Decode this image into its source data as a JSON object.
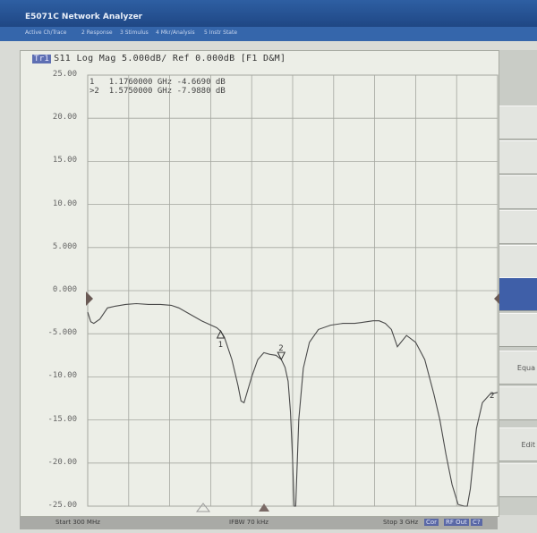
{
  "window": {
    "title": "E5071C Network Analyzer"
  },
  "menu": [
    "Active Ch/Trace",
    "2 Response",
    "3 Stimulus",
    "4 Mkr/Analysis",
    "5 Instr State"
  ],
  "trace": {
    "badge": "Tr1",
    "header": "S11 Log Mag 5.000dB/ Ref 0.000dB [F1 D&M]"
  },
  "markers": [
    {
      "label": "1",
      "freq": "1.1760000 GHz",
      "value": "-4.6690 dB"
    },
    {
      "label": ">2",
      "freq": "1.5750000 GHz",
      "value": "-7.9880 dB"
    }
  ],
  "marker_tags": [
    "1",
    "2",
    "2"
  ],
  "y_labels": [
    "25.00",
    "20.00",
    "15.00",
    "10.00",
    "5.000",
    "0.000",
    "-5.000",
    "-10.00",
    "-15.00",
    "-20.00",
    "-25.00"
  ],
  "status": {
    "start": "Start 300 MHz",
    "ifbw": "IFBW 70 kHz",
    "stop": "Stop 3 GHz",
    "tags": [
      "Cor",
      "RF Out",
      "C?"
    ]
  },
  "softkeys": [
    "",
    "",
    "",
    "",
    "",
    "",
    "",
    "",
    "",
    "Equa",
    "",
    "Edit",
    ""
  ],
  "colors": {
    "trace": "#4a4a4a",
    "grid": "#a4a69f",
    "titlebar": "#2e5fa3",
    "active_key": "#3f5fa8"
  },
  "chart_data": {
    "type": "line",
    "title": "S11 Log Mag 5.000dB/ Ref 0.000dB [F1 D&M]",
    "xlabel": "",
    "ylabel": "",
    "xlim": [
      0.3,
      3.0
    ],
    "ylim": [
      -25,
      25
    ],
    "x_units": "GHz",
    "y_units": "dB",
    "yticks": [
      25,
      20,
      15,
      10,
      5,
      0,
      -5,
      -10,
      -15,
      -20,
      -25
    ],
    "grid": true,
    "series": [
      {
        "x": [
          0.3,
          0.32,
          0.34,
          0.38,
          0.43,
          0.48,
          0.55,
          0.62,
          0.7,
          0.78,
          0.85,
          0.9,
          0.95,
          1.0,
          1.05,
          1.1,
          1.15,
          1.176,
          1.2,
          1.25,
          1.29,
          1.31,
          1.33,
          1.38,
          1.42,
          1.46,
          1.5,
          1.54,
          1.575,
          1.6,
          1.62,
          1.635,
          1.648,
          1.66,
          1.67,
          1.69,
          1.72,
          1.76,
          1.82,
          1.9,
          1.98,
          2.06,
          2.1,
          2.14,
          2.18,
          2.22,
          2.26,
          2.3,
          2.34,
          2.4,
          2.46,
          2.52,
          2.58,
          2.62,
          2.66,
          2.7,
          2.74,
          2.78,
          2.8,
          2.82,
          2.86,
          2.9,
          2.95,
          3.0
        ],
        "y": [
          -2.5,
          -3.6,
          -3.8,
          -3.3,
          -2.0,
          -1.8,
          -1.6,
          -1.5,
          -1.6,
          -1.6,
          -1.7,
          -2.0,
          -2.5,
          -3.0,
          -3.5,
          -3.9,
          -4.3,
          -4.7,
          -5.4,
          -8.0,
          -11.0,
          -12.8,
          -13.0,
          -10.0,
          -8.0,
          -7.2,
          -7.4,
          -7.5,
          -7.99,
          -8.9,
          -10.5,
          -14.0,
          -19.0,
          -25.0,
          -25.0,
          -15.0,
          -9.0,
          -6.0,
          -4.5,
          -4.0,
          -3.8,
          -3.8,
          -3.7,
          -3.6,
          -3.5,
          -3.5,
          -3.8,
          -4.5,
          -6.5,
          -5.2,
          -6.0,
          -8.0,
          -12.0,
          -15.0,
          -19.0,
          -22.5,
          -24.8,
          -25.0,
          -25.0,
          -23.0,
          -16.0,
          -13.0,
          -12.0,
          -11.8
        ]
      }
    ],
    "markers": [
      {
        "label": "1",
        "x": 1.176,
        "y": -4.669
      },
      {
        "label": "2",
        "x": 1.575,
        "y": -7.988
      }
    ]
  }
}
